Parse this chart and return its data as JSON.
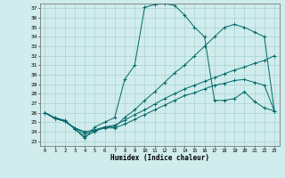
{
  "xlabel": "Humidex (Indice chaleur)",
  "xlim": [
    -0.5,
    23.5
  ],
  "ylim": [
    22.5,
    37.5
  ],
  "yticks": [
    23,
    24,
    25,
    26,
    27,
    28,
    29,
    30,
    31,
    32,
    33,
    34,
    35,
    36,
    37
  ],
  "xticks": [
    0,
    1,
    2,
    3,
    4,
    5,
    6,
    7,
    8,
    9,
    10,
    11,
    12,
    13,
    14,
    15,
    16,
    17,
    18,
    19,
    20,
    21,
    22,
    23
  ],
  "color": "#006868",
  "bg_color": "#d0ecec",
  "grid_color": "#a0cccc",
  "line1_x": [
    0,
    1,
    2,
    3,
    4,
    5,
    6,
    7,
    8,
    9,
    10,
    11,
    12,
    13,
    14,
    15,
    16,
    17,
    18,
    19,
    20,
    21,
    22,
    23
  ],
  "line1_y": [
    26.0,
    25.5,
    25.2,
    24.3,
    23.3,
    24.5,
    25.0,
    25.5,
    29.5,
    31.0,
    37.1,
    37.4,
    37.5,
    37.3,
    36.3,
    35.0,
    34.0,
    27.3,
    27.3,
    27.5,
    28.2,
    27.2,
    26.5,
    26.2
  ],
  "line2_x": [
    0,
    1,
    2,
    3,
    4,
    5,
    6,
    7,
    8,
    9,
    10,
    11,
    12,
    13,
    14,
    15,
    16,
    17,
    18,
    19,
    20,
    21,
    22,
    23
  ],
  "line2_y": [
    26.0,
    25.4,
    25.1,
    24.3,
    23.5,
    24.0,
    24.5,
    24.5,
    25.5,
    26.3,
    27.3,
    28.2,
    29.2,
    30.2,
    31.0,
    32.0,
    33.0,
    34.0,
    35.0,
    35.3,
    35.0,
    34.5,
    34.0,
    26.2
  ],
  "line3_x": [
    0,
    1,
    2,
    3,
    4,
    5,
    6,
    7,
    8,
    9,
    10,
    11,
    12,
    13,
    14,
    15,
    16,
    17,
    18,
    19,
    20,
    21,
    22,
    23
  ],
  "line3_y": [
    26.0,
    25.4,
    25.1,
    24.4,
    24.0,
    24.2,
    24.5,
    24.7,
    25.2,
    25.8,
    26.3,
    26.9,
    27.5,
    28.0,
    28.5,
    28.9,
    29.3,
    29.7,
    30.1,
    30.5,
    30.8,
    31.2,
    31.5,
    32.0
  ],
  "line4_x": [
    0,
    1,
    2,
    3,
    4,
    5,
    6,
    7,
    8,
    9,
    10,
    11,
    12,
    13,
    14,
    15,
    16,
    17,
    18,
    19,
    20,
    21,
    22,
    23
  ],
  "line4_y": [
    26.0,
    25.4,
    25.1,
    24.4,
    23.8,
    24.1,
    24.4,
    24.4,
    24.8,
    25.3,
    25.8,
    26.3,
    26.8,
    27.3,
    27.8,
    28.1,
    28.5,
    28.9,
    29.1,
    29.4,
    29.5,
    29.2,
    28.9,
    26.2
  ]
}
